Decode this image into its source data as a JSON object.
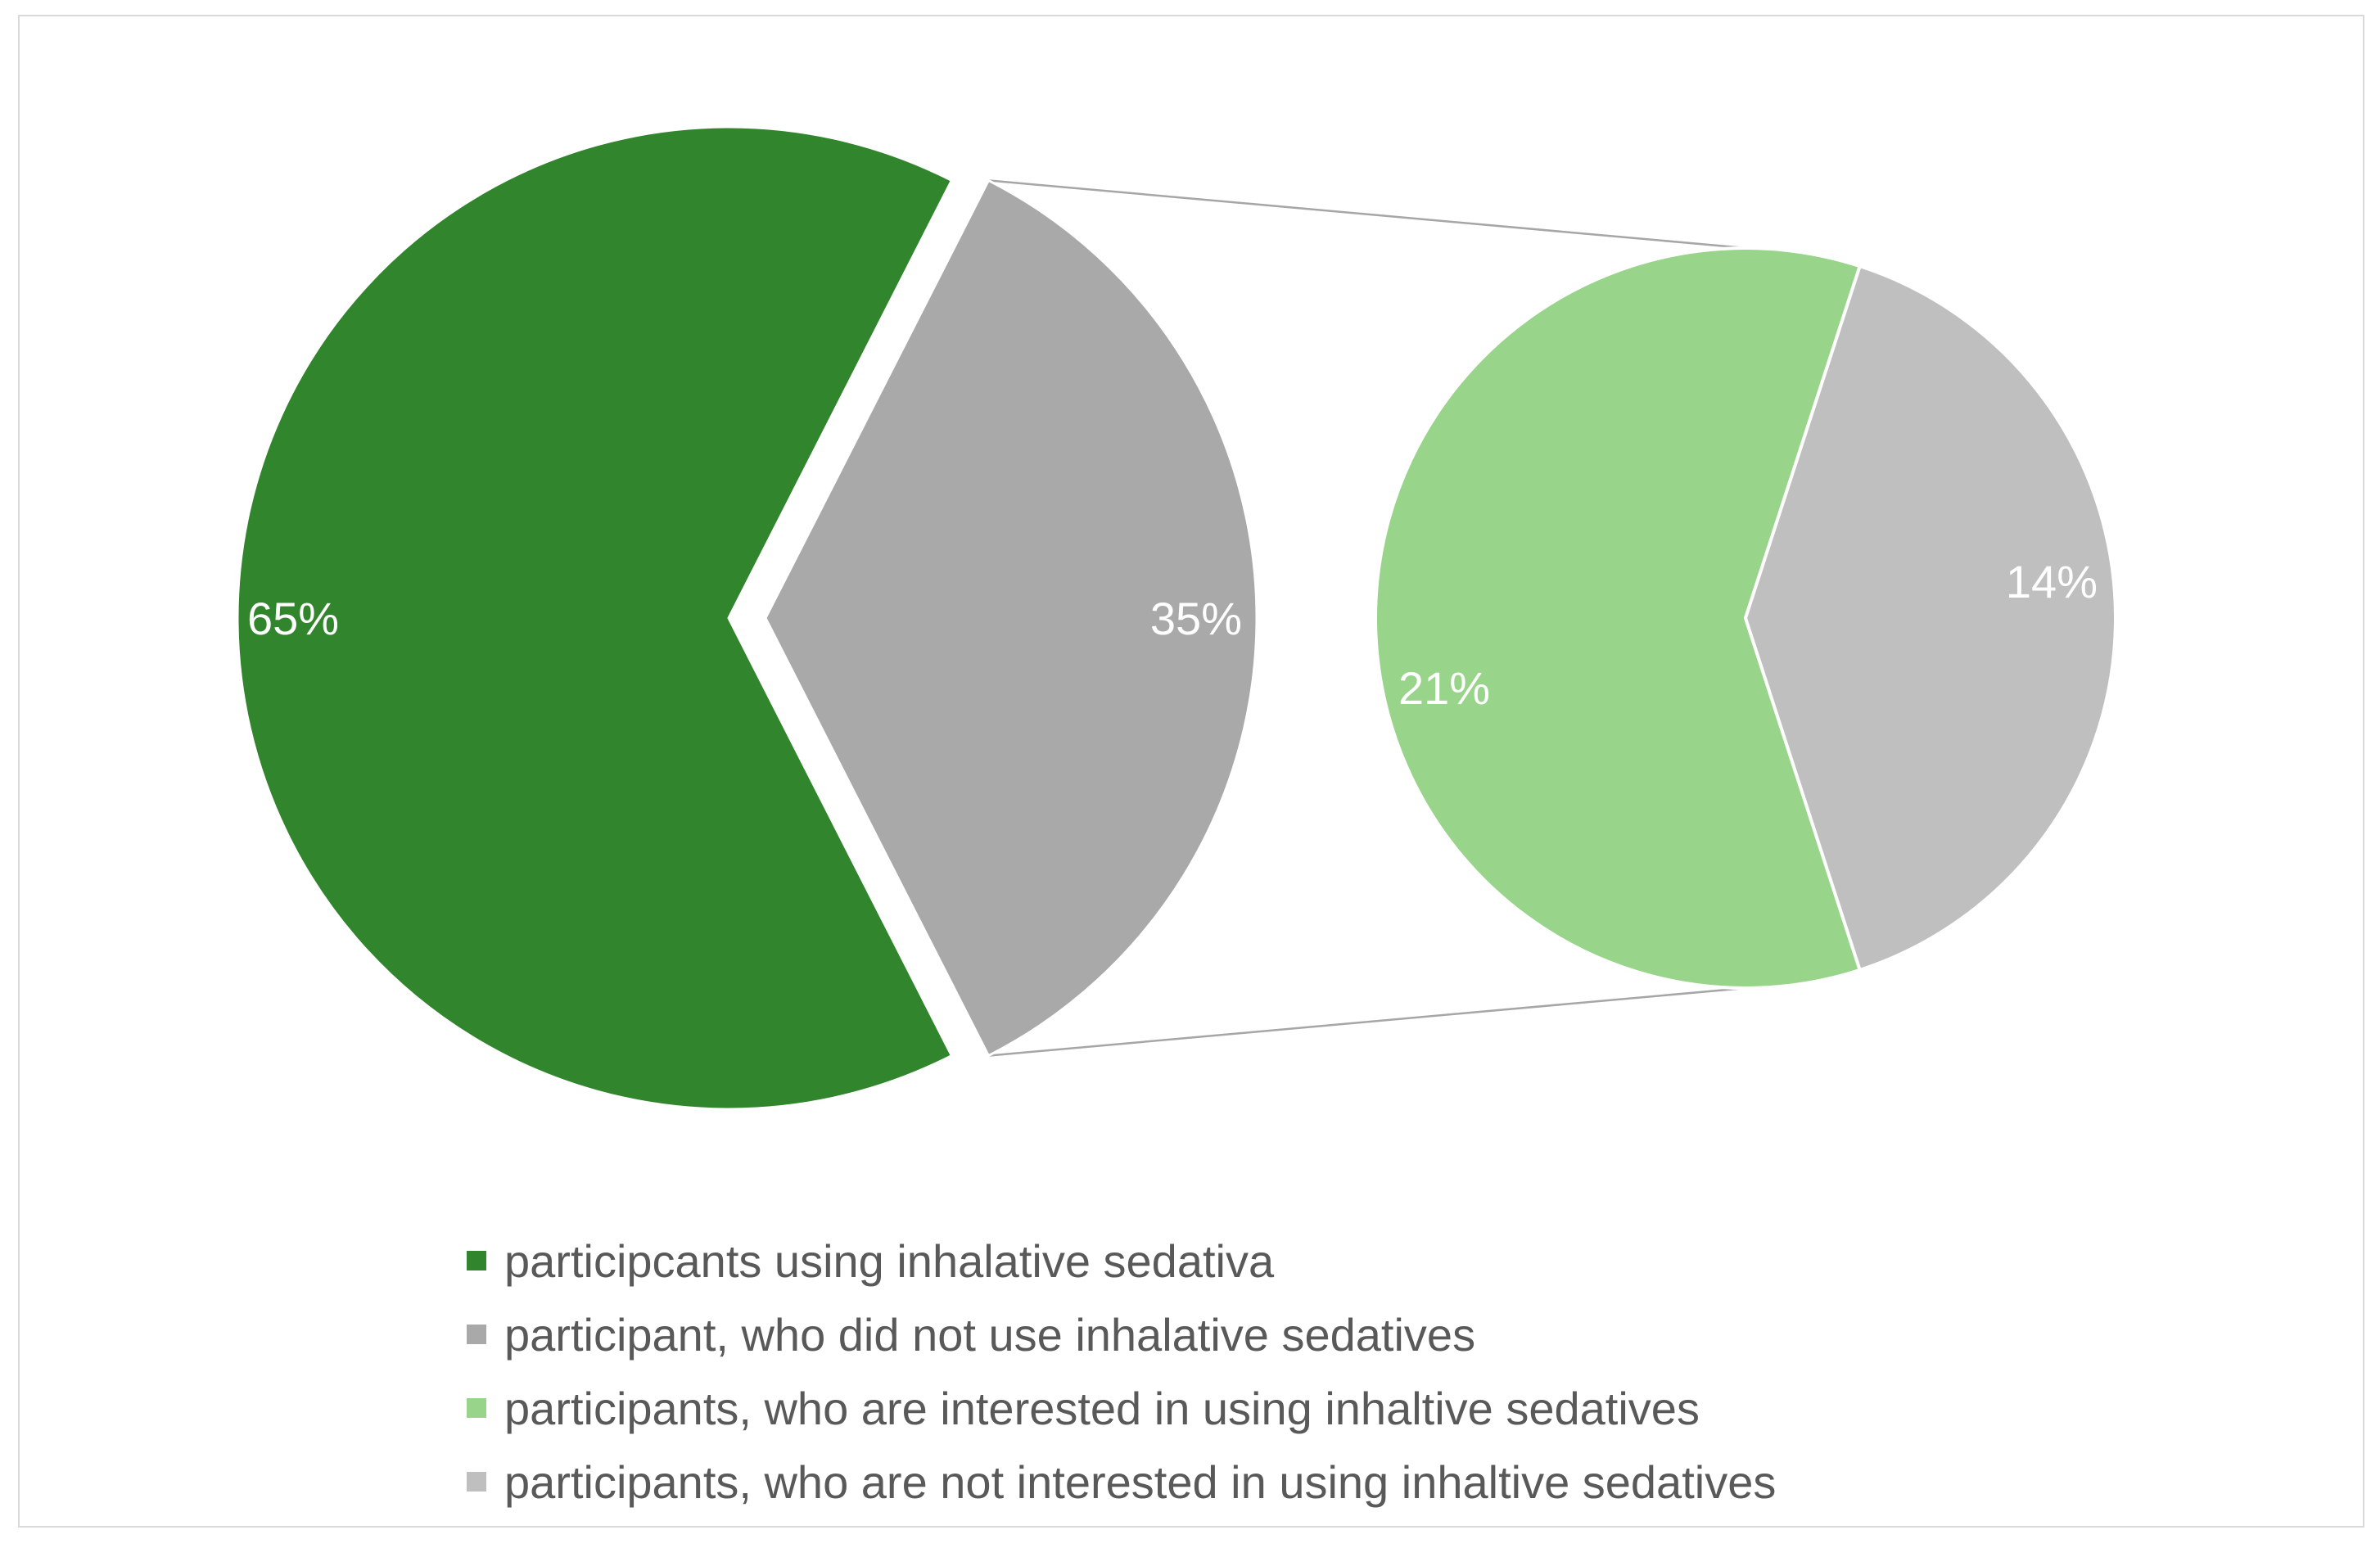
{
  "chart_data": {
    "type": "pie",
    "subtype": "pie-of-pie",
    "title": "",
    "main_pie": {
      "slices": [
        {
          "label": "participcants using inhalative sedativa",
          "legend_index": 0,
          "value": 65,
          "display": "65%",
          "color": "#31852c"
        },
        {
          "label": "participant, who did not use inhalative sedatives",
          "legend_index": 1,
          "value": 35,
          "display": "35%",
          "color": "#a9a9a9",
          "exploded": true
        }
      ]
    },
    "secondary_pie": {
      "breaks_down": "participant, who did not use inhalative sedatives",
      "slices": [
        {
          "label": "participants, who are interested in using inhaltive sedatives",
          "legend_index": 2,
          "value": 21,
          "display": "21%",
          "color": "#98d48a"
        },
        {
          "label": "participants, who are not interested in using inhaltive sedatives",
          "legend_index": 3,
          "value": 14,
          "display": "14%",
          "color": "#bfbfbf"
        }
      ]
    },
    "legend": {
      "placement": "bottom",
      "entries": [
        {
          "label": "participcants using inhalative sedativa",
          "color": "#31852c"
        },
        {
          "label": "participant, who did not use inhalative sedatives",
          "color": "#a9a9a9"
        },
        {
          "label": "participants, who are interested in using inhaltive sedatives",
          "color": "#98d48a"
        },
        {
          "label": "participants, who are not interested in using inhaltive sedatives",
          "color": "#bfbfbf"
        }
      ]
    },
    "connector_color": "#a6a6a6"
  }
}
